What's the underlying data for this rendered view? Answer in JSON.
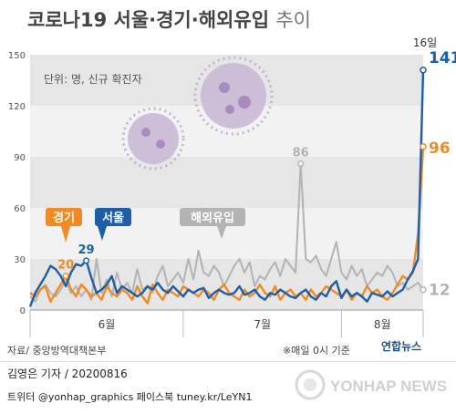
{
  "title_main": "코로나19 서울·경기·해외유입",
  "title_sub": "추이",
  "unit_label": "단위: 명, 신규 확진자",
  "source": "자료/ 중앙방역대책본부",
  "note": "※매일 0시 기준",
  "logo_small": "연합뉴스",
  "reporter": "김영은 기자 / 20200816",
  "social": "트위터 @yonhap_graphics  페이스북 tuney.kr/LeYN1",
  "watermark": "YONHAP NEWS",
  "chart_data": {
    "type": "line",
    "title": "코로나19 서울·경기·해외유입 추이",
    "ylabel": "단위: 명, 신규 확진자",
    "ylim": [
      0,
      150
    ],
    "yticks": [
      0,
      30,
      60,
      90,
      120,
      150
    ],
    "month_labels": [
      "6월",
      "7월",
      "8월"
    ],
    "date_annotation": "16일",
    "n_days": 78,
    "colors": {
      "seoul": "#1c5fa8",
      "gyeonggi": "#f08a24",
      "overseas": "#b3b3b3"
    },
    "series": [
      {
        "name": "서울",
        "key": "seoul",
        "end_label": "141",
        "peak_label": "29",
        "peak_index": 11,
        "values": [
          2,
          10,
          15,
          20,
          26,
          24,
          20,
          14,
          22,
          27,
          26,
          29,
          19,
          10,
          12,
          15,
          20,
          10,
          14,
          12,
          10,
          8,
          10,
          14,
          12,
          16,
          12,
          10,
          14,
          11,
          8,
          12,
          10,
          12,
          13,
          7,
          10,
          12,
          10,
          9,
          10,
          14,
          9,
          10,
          12,
          8,
          6,
          10,
          9,
          12,
          10,
          8,
          7,
          10,
          12,
          8,
          6,
          10,
          8,
          14,
          17,
          7,
          12,
          8,
          10,
          8,
          5,
          10,
          9,
          8,
          11,
          8,
          10,
          12,
          18,
          23,
          30,
          141
        ]
      },
      {
        "name": "경기",
        "key": "gyeonggi",
        "end_label": "96",
        "peak_label": "20",
        "peak_index": 7,
        "values": [
          10,
          8,
          12,
          14,
          5,
          10,
          15,
          20,
          12,
          8,
          15,
          12,
          8,
          10,
          6,
          14,
          10,
          8,
          12,
          10,
          6,
          14,
          8,
          4,
          15,
          10,
          6,
          12,
          10,
          8,
          14,
          12,
          10,
          8,
          12,
          10,
          6,
          12,
          15,
          10,
          8,
          6,
          12,
          8,
          10,
          15,
          10,
          8,
          14,
          6,
          10,
          12,
          8,
          10,
          6,
          12,
          8,
          10,
          14,
          12,
          10,
          8,
          12,
          6,
          10,
          8,
          14,
          10,
          12,
          8,
          6,
          10,
          15,
          20,
          18,
          22,
          45,
          96
        ]
      },
      {
        "name": "해외유입",
        "key": "overseas",
        "end_label": "12",
        "peak_label": "86",
        "peak_index": 53,
        "values": [
          8,
          5,
          12,
          15,
          10,
          8,
          12,
          18,
          10,
          14,
          8,
          12,
          6,
          30,
          10,
          18,
          8,
          22,
          12,
          16,
          10,
          24,
          12,
          14,
          10,
          20,
          26,
          14,
          18,
          22,
          16,
          30,
          18,
          35,
          22,
          20,
          26,
          22,
          14,
          20,
          26,
          30,
          22,
          28,
          14,
          20,
          18,
          24,
          28,
          20,
          30,
          26,
          22,
          86,
          30,
          28,
          32,
          24,
          20,
          30,
          40,
          22,
          18,
          26,
          20,
          24,
          14,
          18,
          22,
          20,
          26,
          22,
          14,
          16,
          12,
          14,
          16,
          12
        ]
      }
    ]
  }
}
